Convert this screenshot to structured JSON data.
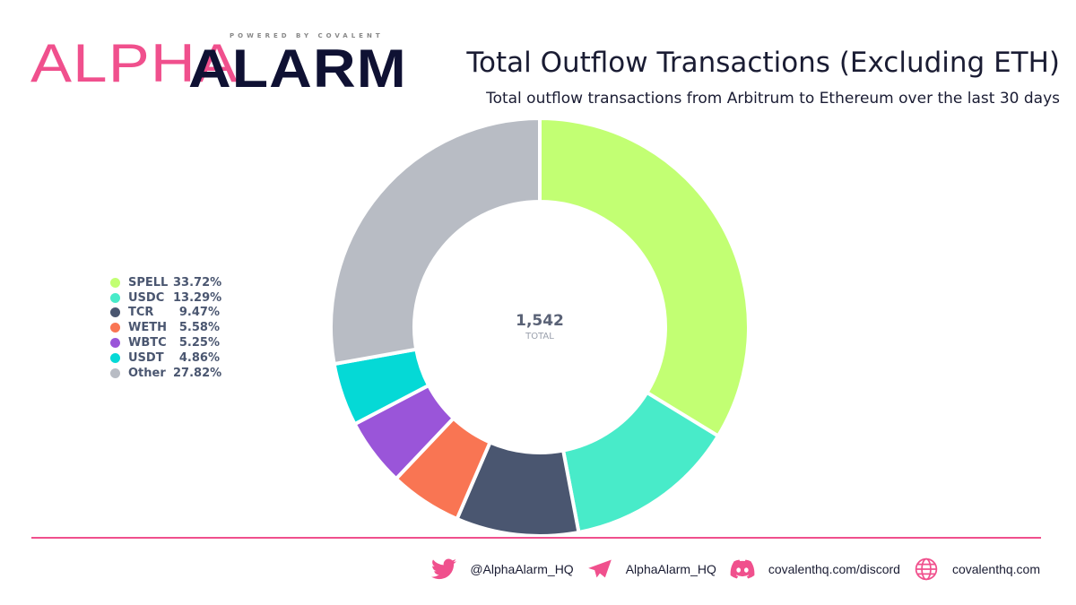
{
  "logo": {
    "alpha": "ALPHA",
    "alarm": "ALARM",
    "powered": "POWERED BY COVALENT"
  },
  "header": {
    "title": "Total Outflow Transactions (Excluding ETH)",
    "subtitle": "Total outflow transactions from Arbitrum to Ethereum over the last 30 days"
  },
  "chart_data": {
    "type": "pie",
    "variant": "donut",
    "title": "Total Outflow Transactions (Excluding ETH)",
    "center": {
      "value": "1,542",
      "label": "TOTAL"
    },
    "legend_position": "left",
    "slices": [
      {
        "label": "SPELL",
        "value": 33.72,
        "display": "33.72%",
        "color": "#c2ff73"
      },
      {
        "label": "USDC",
        "value": 13.29,
        "display": "13.29%",
        "color": "#48ebc9"
      },
      {
        "label": "TCR",
        "value": 9.47,
        "display": "9.47%",
        "color": "#4a5670"
      },
      {
        "label": "WETH",
        "value": 5.58,
        "display": "5.58%",
        "color": "#f97553"
      },
      {
        "label": "WBTC",
        "value": 5.25,
        "display": "5.25%",
        "color": "#9a55d9"
      },
      {
        "label": "USDT",
        "value": 4.86,
        "display": "4.86%",
        "color": "#05d9d6"
      },
      {
        "label": "Other",
        "value": 27.82,
        "display": "27.82%",
        "color": "#b8bcc4"
      }
    ]
  },
  "footer": {
    "twitter": "@AlphaAlarm_HQ",
    "telegram": "AlphaAlarm_HQ",
    "discord": "covalenthq.com/discord",
    "website": "covalenthq.com"
  },
  "colors": {
    "accent": "#f0508d",
    "navy": "#0f1133"
  }
}
